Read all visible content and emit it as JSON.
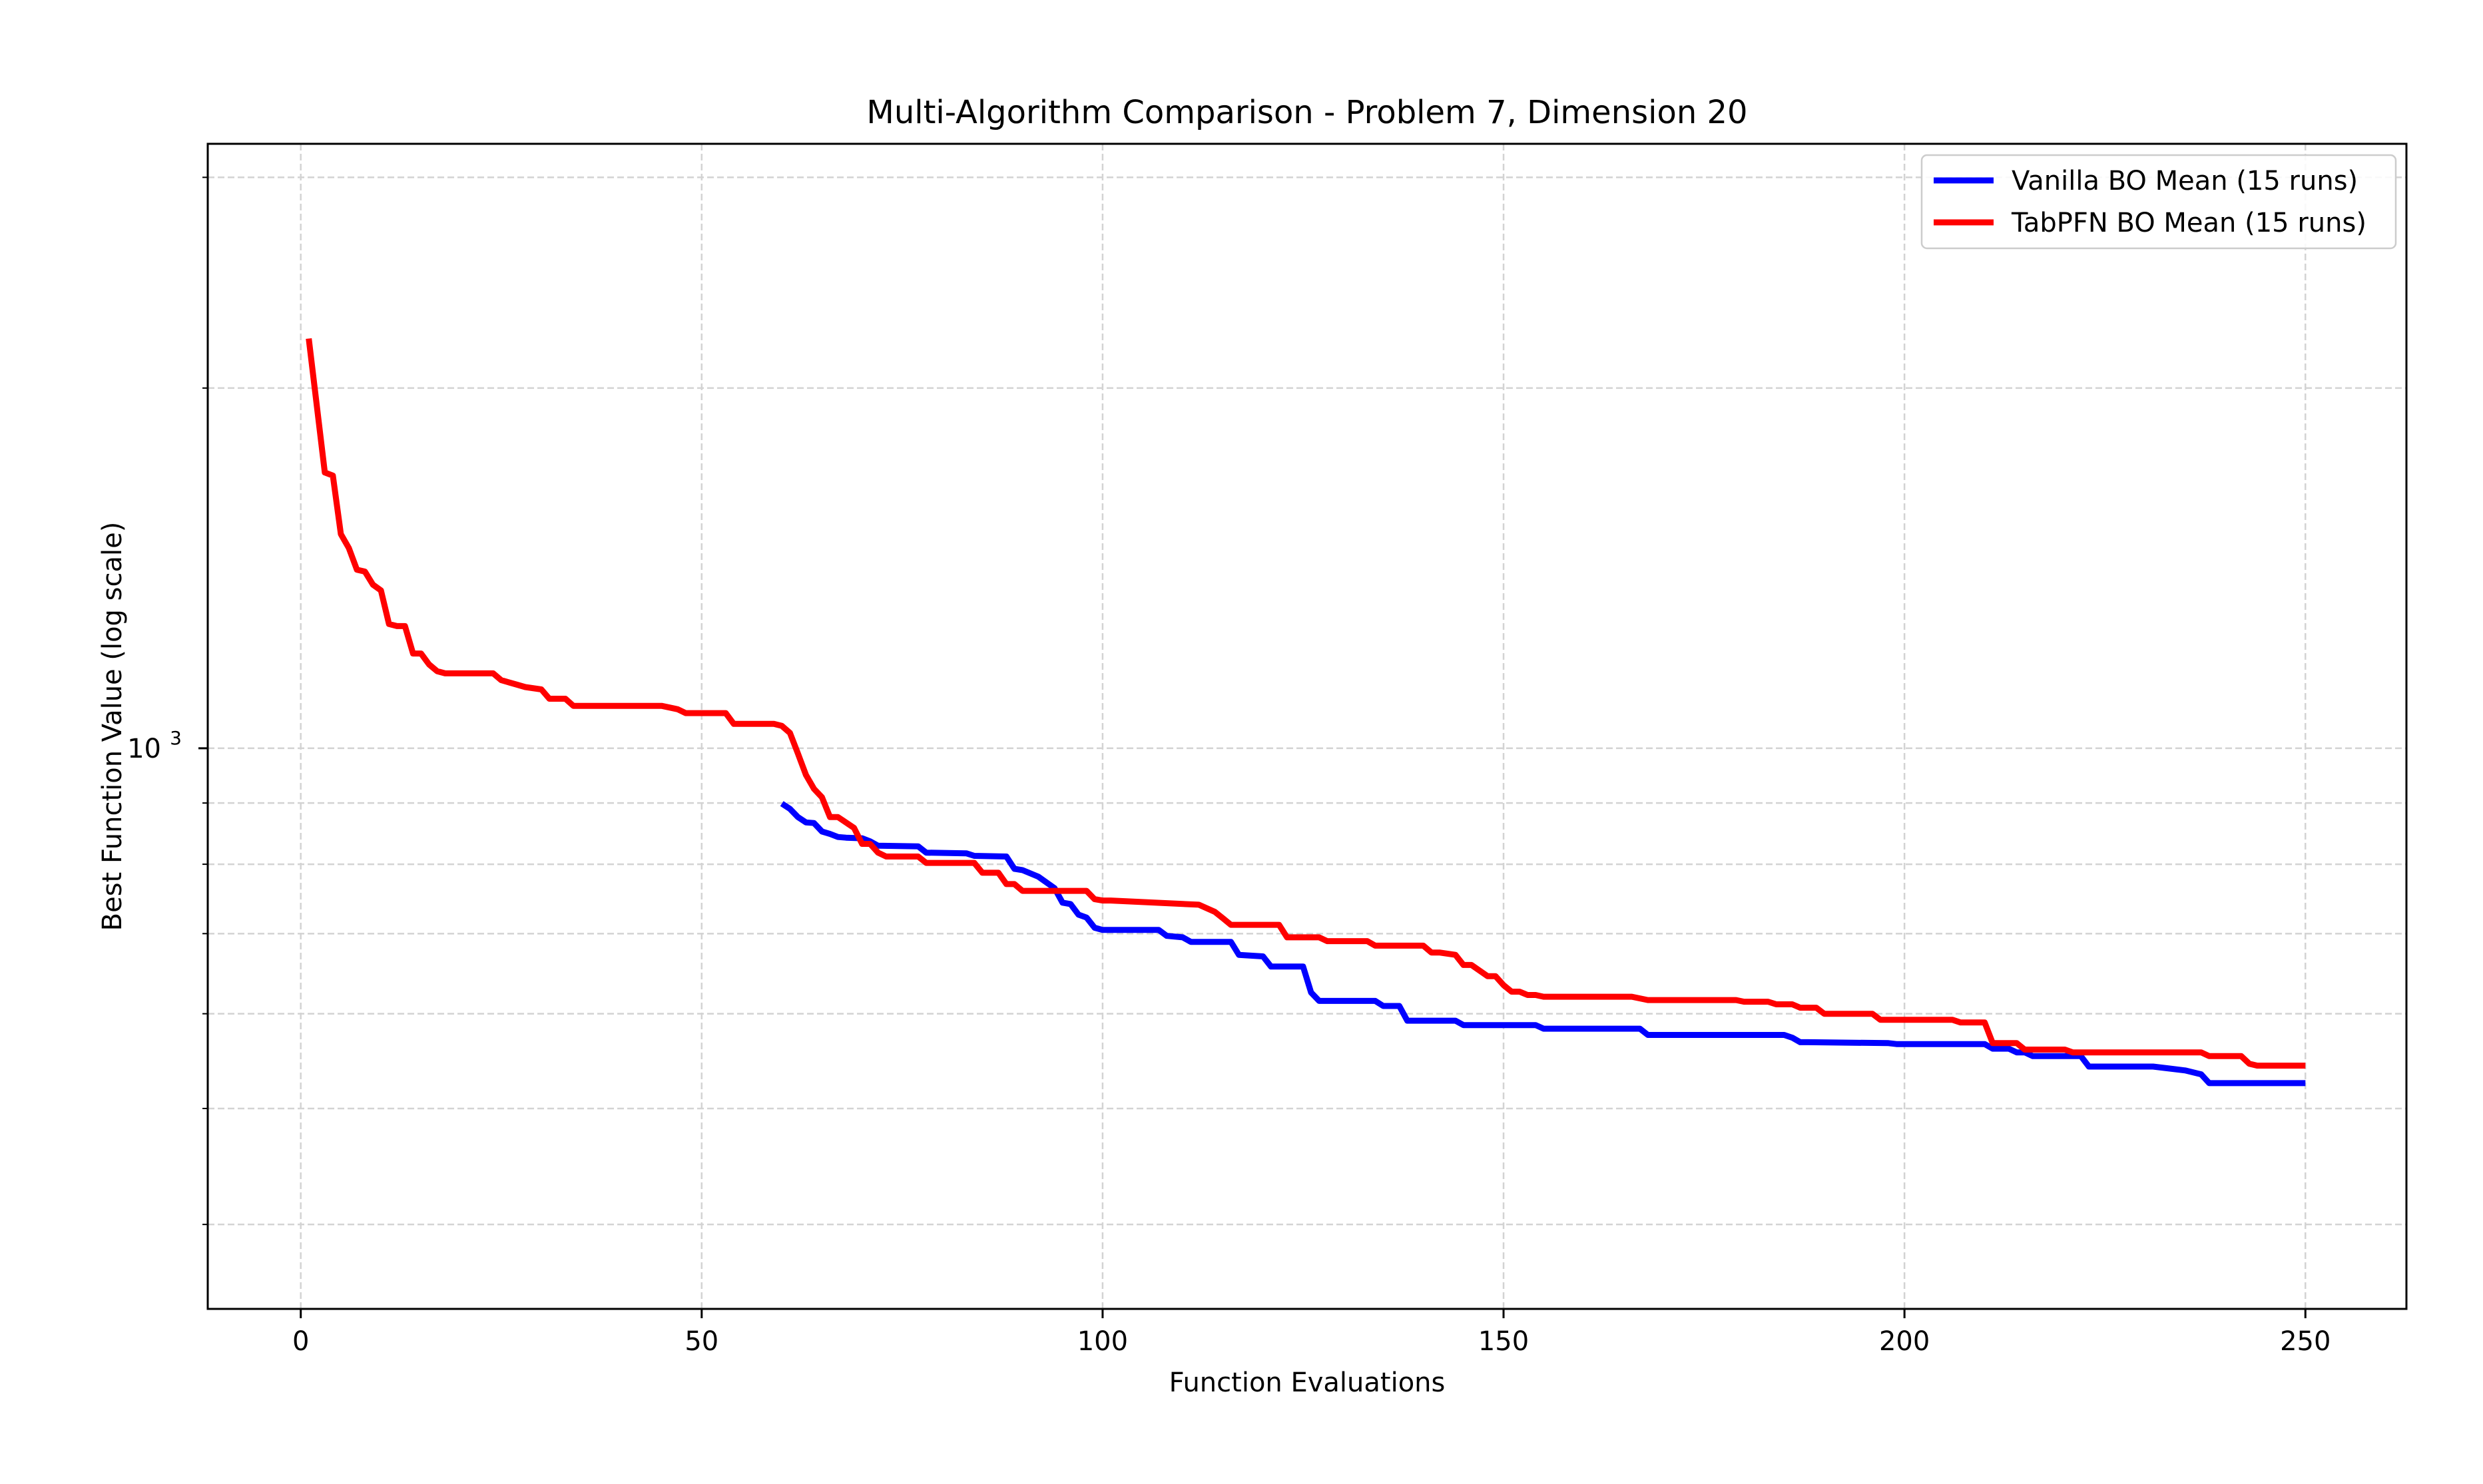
{
  "figure": {
    "title": "Multi-Algorithm Comparison - Problem 7, Dimension 20",
    "xlabel": "Function Evaluations",
    "ylabel": "Best Function Value (log scale)"
  },
  "chart_data": {
    "type": "line",
    "title": "Multi-Algorithm Comparison - Problem 7, Dimension 20",
    "xlabel": "Function Evaluations",
    "ylabel": "Best Function Value (log scale)",
    "xlim": [
      -11.6,
      262.6
    ],
    "ylim": [
      340,
      3200
    ],
    "yscale": "log",
    "grid": true,
    "legend_position": "top-right",
    "x_ticks": [
      0,
      50,
      100,
      150,
      200,
      250
    ],
    "x_tick_labels": [
      "0",
      "50",
      "100",
      "150",
      "200",
      "250"
    ],
    "y_major_ticks": [
      1000
    ],
    "y_major_tick_labels": [
      "10^3"
    ],
    "y_minor_ticks": [
      400,
      500,
      600,
      700,
      800,
      900,
      2000,
      3000
    ],
    "series": [
      {
        "name": "Vanilla BO Mean (15 runs)",
        "color": "#0000ff",
        "x": [
          60,
          61,
          62,
          63,
          64,
          65,
          66,
          67,
          68,
          70,
          71,
          72,
          77,
          78,
          83,
          84,
          88,
          89,
          90,
          92,
          94,
          95,
          96,
          97,
          98,
          99,
          100,
          107,
          108,
          110,
          111,
          116,
          117,
          120,
          121,
          125,
          126,
          127,
          134,
          135,
          137,
          138,
          144,
          145,
          154,
          155,
          167,
          168,
          185,
          186,
          187,
          188,
          198,
          199,
          210,
          211,
          213,
          214,
          215,
          216,
          222,
          223,
          231,
          233,
          235,
          237,
          238,
          250
        ],
        "y": [
          899,
          890,
          876,
          867,
          866,
          852,
          848,
          843,
          842,
          841,
          836,
          829,
          828,
          818,
          817,
          813,
          812,
          793,
          791,
          781,
          764,
          743,
          741,
          726,
          722,
          708,
          705,
          705,
          697,
          695,
          689,
          689,
          672,
          670,
          657,
          657,
          625,
          615,
          615,
          609,
          609,
          592,
          592,
          587,
          587,
          583,
          583,
          576,
          576,
          573,
          568,
          568,
          567,
          566,
          566,
          561,
          561,
          557,
          557,
          553,
          553,
          542,
          542,
          540,
          538,
          534,
          525,
          525
        ]
      },
      {
        "name": "TabPFN BO Mean (15 runs)",
        "color": "#ff0000",
        "x": [
          1,
          3,
          4,
          5,
          6,
          7,
          8,
          9,
          10,
          11,
          12,
          13,
          14,
          15,
          16,
          17,
          18,
          24,
          25,
          27,
          28,
          30,
          31,
          33,
          34,
          45,
          47,
          48,
          53,
          54,
          59,
          60,
          61,
          62,
          63,
          64,
          65,
          66,
          67,
          69,
          70,
          71,
          72,
          73,
          74,
          77,
          78,
          84,
          85,
          87,
          88,
          89,
          90,
          98,
          99,
          100,
          101,
          112,
          114,
          115,
          116,
          117,
          122,
          123,
          127,
          128,
          133,
          134,
          140,
          141,
          142,
          144,
          145,
          146,
          148,
          149,
          150,
          151,
          152,
          153,
          154,
          155,
          166,
          167,
          168,
          179,
          180,
          183,
          184,
          186,
          187,
          189,
          190,
          196,
          197,
          206,
          207,
          210,
          211,
          214,
          215,
          220,
          221,
          237,
          238,
          242,
          243,
          244,
          250
        ],
        "y": [
          2200,
          1700,
          1690,
          1510,
          1470,
          1410,
          1405,
          1370,
          1355,
          1270,
          1265,
          1265,
          1200,
          1200,
          1175,
          1160,
          1155,
          1155,
          1140,
          1130,
          1125,
          1120,
          1100,
          1100,
          1085,
          1085,
          1078,
          1070,
          1070,
          1048,
          1048,
          1044,
          1030,
          990,
          950,
          925,
          910,
          876,
          876,
          858,
          832,
          832,
          818,
          812,
          812,
          812,
          802,
          802,
          787,
          787,
          770,
          770,
          760,
          760,
          748,
          746,
          746,
          740,
          730,
          721,
          712,
          712,
          712,
          695,
          695,
          690,
          690,
          684,
          684,
          675,
          675,
          672,
          659,
          659,
          645,
          645,
          634,
          626,
          626,
          622,
          622,
          620,
          620,
          618,
          616,
          616,
          614,
          614,
          611,
          611,
          607,
          607,
          600,
          600,
          593,
          593,
          590,
          590,
          567,
          567,
          560,
          560,
          557,
          557,
          553,
          553,
          545,
          543,
          543
        ]
      }
    ]
  }
}
